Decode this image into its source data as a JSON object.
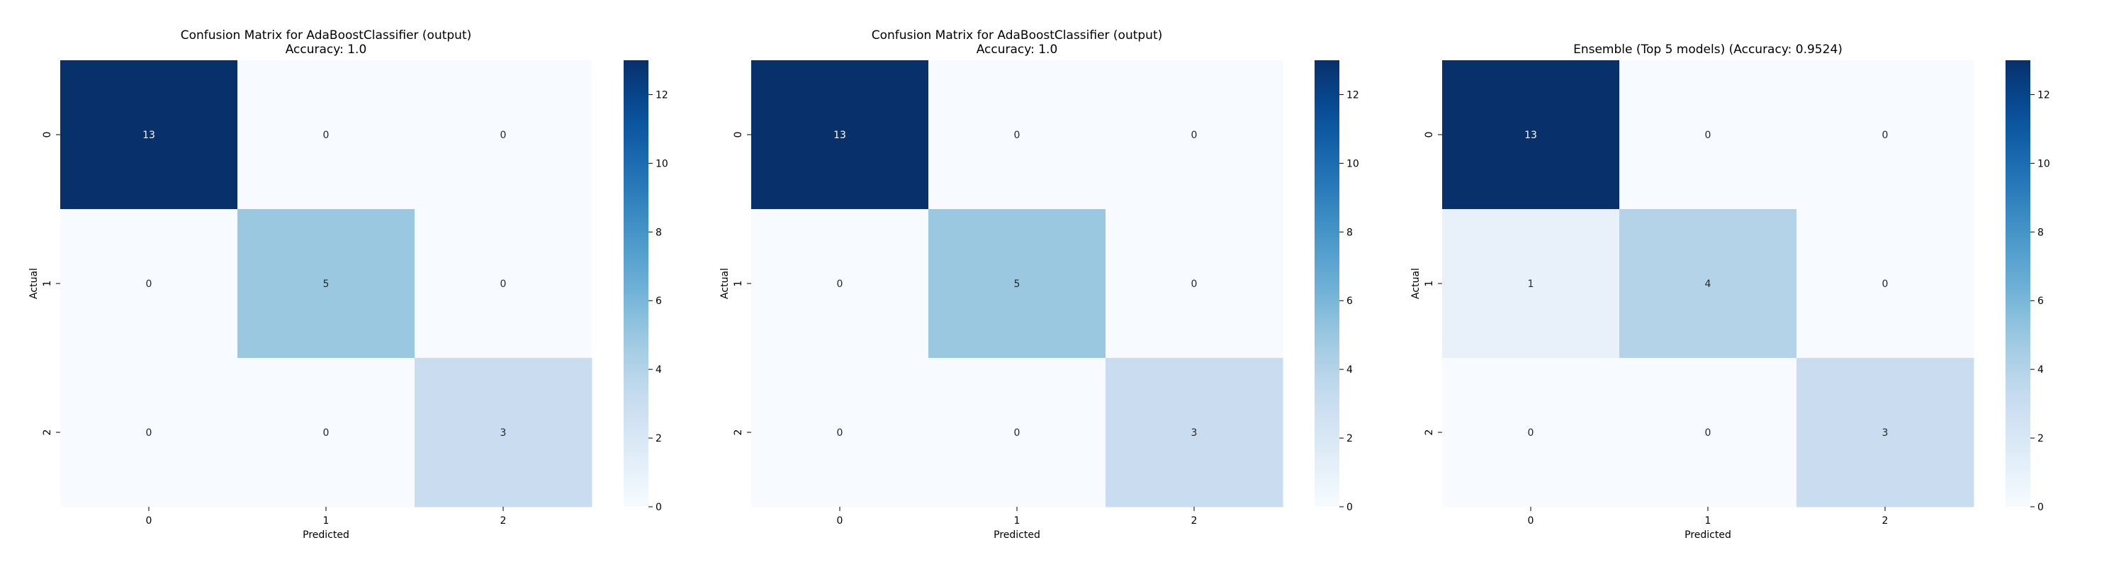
{
  "chart_data": [
    {
      "type": "heatmap",
      "title": "Confusion Matrix for AdaBoostClassifier (output)\nAccuracy: 1.0",
      "xlabel": "Predicted",
      "ylabel": "Actual",
      "x_categories": [
        "0",
        "1",
        "2"
      ],
      "y_categories": [
        "0",
        "1",
        "2"
      ],
      "matrix": [
        [
          13,
          0,
          0
        ],
        [
          0,
          5,
          0
        ],
        [
          0,
          0,
          3
        ]
      ],
      "colormap": "Blues",
      "colorbar": {
        "min": 0,
        "max": 13,
        "ticks": [
          0,
          2,
          4,
          6,
          8,
          10,
          12
        ]
      }
    },
    {
      "type": "heatmap",
      "title": "Confusion Matrix for AdaBoostClassifier (output)\nAccuracy: 1.0",
      "xlabel": "Predicted",
      "ylabel": "Actual",
      "x_categories": [
        "0",
        "1",
        "2"
      ],
      "y_categories": [
        "0",
        "1",
        "2"
      ],
      "matrix": [
        [
          13,
          0,
          0
        ],
        [
          0,
          5,
          0
        ],
        [
          0,
          0,
          3
        ]
      ],
      "colormap": "Blues",
      "colorbar": {
        "min": 0,
        "max": 13,
        "ticks": [
          0,
          2,
          4,
          6,
          8,
          10,
          12
        ]
      }
    },
    {
      "type": "heatmap",
      "title": "Ensemble (Top 5 models) (Accuracy: 0.9524)",
      "xlabel": "Predicted",
      "ylabel": "Actual",
      "x_categories": [
        "0",
        "1",
        "2"
      ],
      "y_categories": [
        "0",
        "1",
        "2"
      ],
      "matrix": [
        [
          13,
          0,
          0
        ],
        [
          1,
          4,
          0
        ],
        [
          0,
          0,
          3
        ]
      ],
      "colormap": "Blues",
      "colorbar": {
        "min": 0,
        "max": 13,
        "ticks": [
          0,
          2,
          4,
          6,
          8,
          10,
          12
        ]
      }
    }
  ]
}
